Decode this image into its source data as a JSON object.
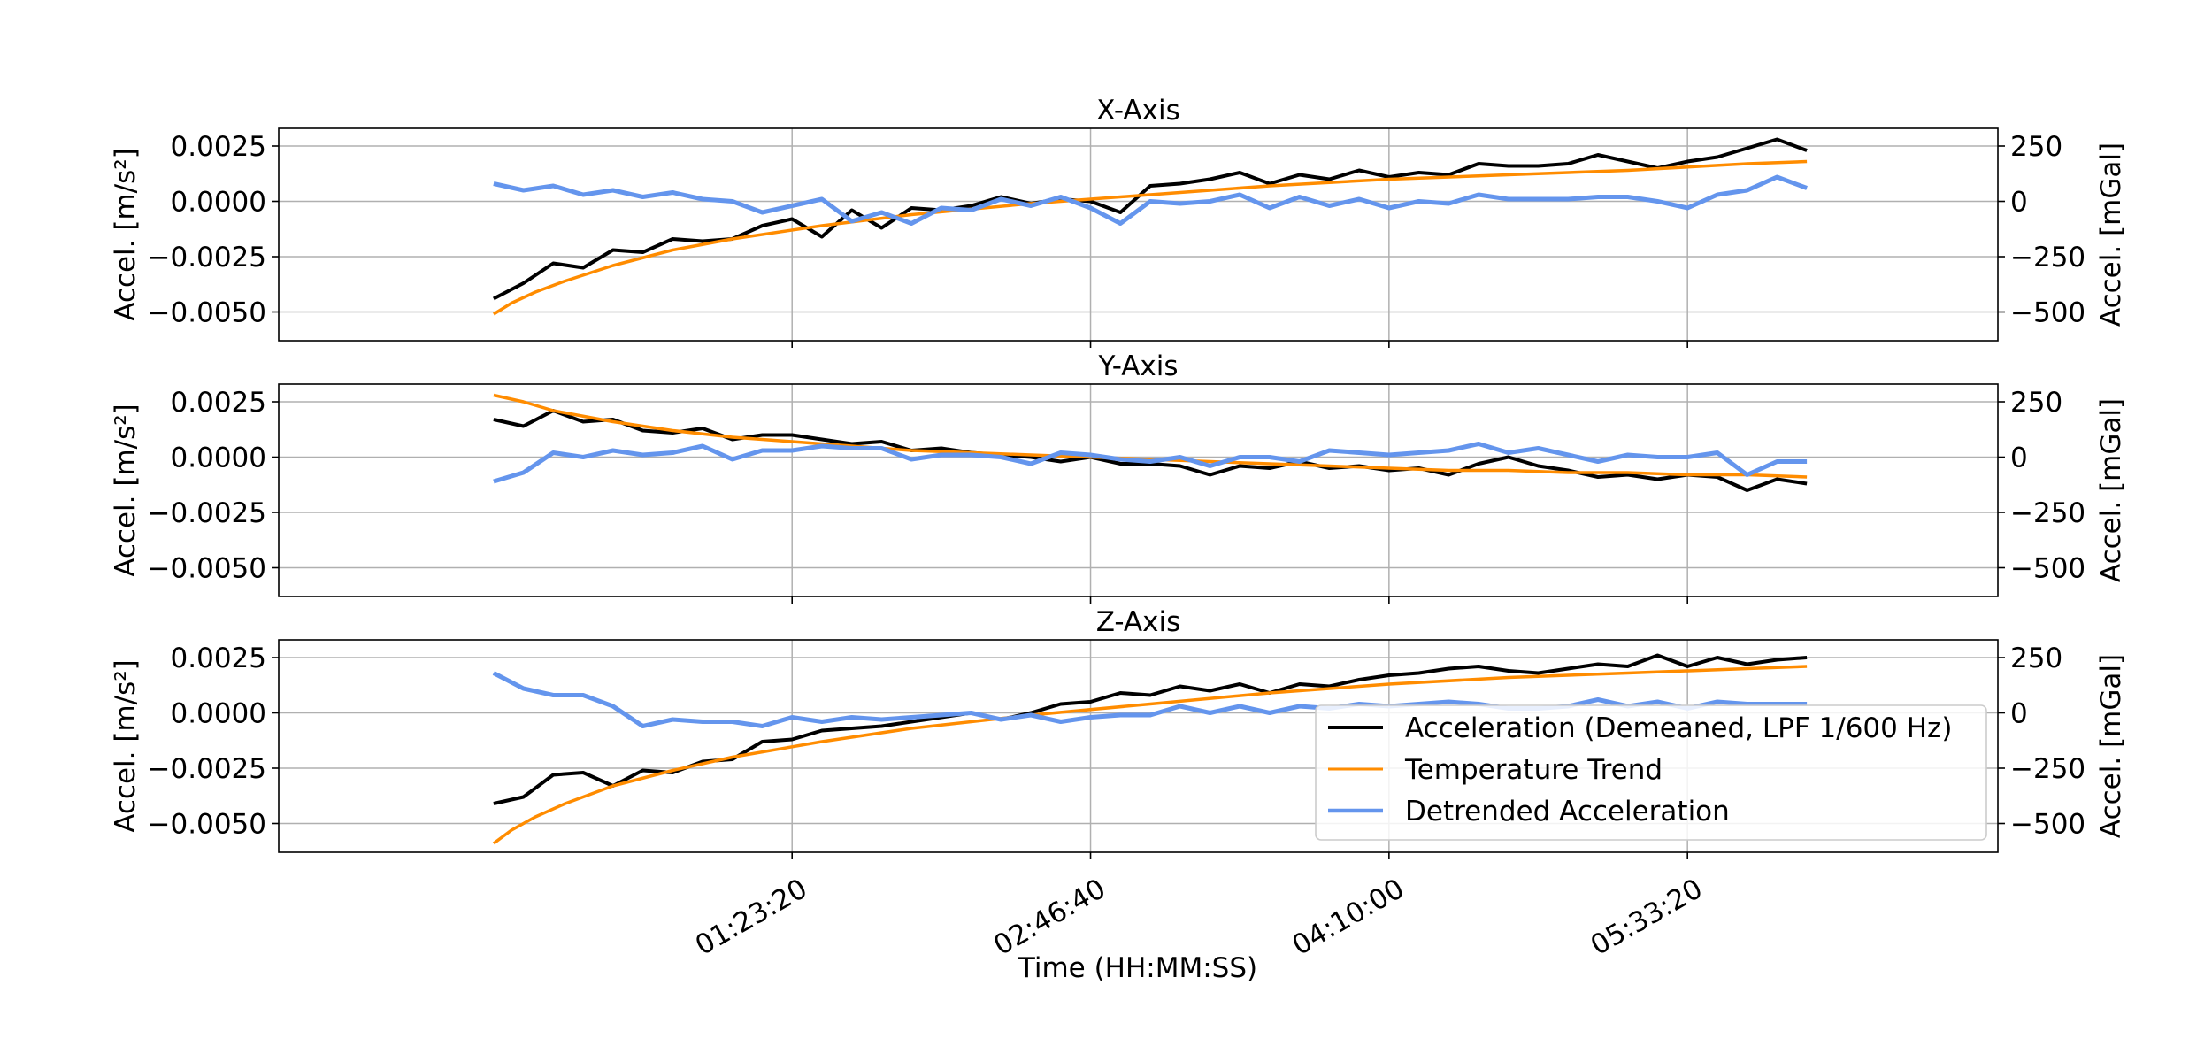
{
  "chart_data": {
    "type": "line",
    "xlabel": "Time (HH:MM:SS)",
    "x_range_seconds": [
      -3600,
      25200
    ],
    "x_ticks": [
      {
        "t": 5000,
        "label": "01:23:20"
      },
      {
        "t": 10000,
        "label": "02:46:40"
      },
      {
        "t": 15000,
        "label": "04:10:00"
      },
      {
        "t": 20000,
        "label": "05:33:20"
      }
    ],
    "ylabel_left": "Accel. [m/s²]",
    "ylabel_right": "Accel. [mGal]",
    "ylim_left": [
      -0.0063,
      0.0033
    ],
    "ylim_right": [
      -630,
      330
    ],
    "yticks_left": [
      {
        "v": 0.0025,
        "label": "0.0025"
      },
      {
        "v": 0.0,
        "label": "0.0000"
      },
      {
        "v": -0.0025,
        "label": "−0.0025"
      },
      {
        "v": -0.005,
        "label": "−0.0050"
      }
    ],
    "yticks_right": [
      {
        "v": 250,
        "label": "250"
      },
      {
        "v": 0,
        "label": "0"
      },
      {
        "v": -250,
        "label": "−250"
      },
      {
        "v": -500,
        "label": "−500"
      }
    ],
    "grid": true,
    "legend": {
      "placement": "lower-right (Z-Axis panel)",
      "entries": [
        {
          "label": "Acceleration (Demeaned, LPF 1/600 Hz)",
          "color": "#000000"
        },
        {
          "label": "Temperature Trend",
          "color": "#ff8c00"
        },
        {
          "label": "Detrended Acceleration",
          "color": "#6495ed"
        }
      ]
    },
    "colors": {
      "acceleration": "#000000",
      "temperature": "#ff8c00",
      "detrended": "#6495ed"
    },
    "panels": [
      {
        "title": "X-Axis",
        "series": {
          "acceleration": {
            "t": [
              0,
              500,
              1000,
              1500,
              2000,
              2500,
              3000,
              3500,
              4000,
              4500,
              5000,
              5500,
              6000,
              6500,
              7000,
              7500,
              8000,
              8500,
              9000,
              9500,
              10000,
              10500,
              11000,
              11500,
              12000,
              12500,
              13000,
              13500,
              14000,
              14500,
              15000,
              15500,
              16000,
              16500,
              17000,
              17500,
              18000,
              18500,
              19000,
              19500,
              20000,
              20500,
              21000,
              21500,
              22000
            ],
            "v": [
              -0.0044,
              -0.0037,
              -0.0028,
              -0.003,
              -0.0022,
              -0.0023,
              -0.0017,
              -0.0018,
              -0.0017,
              -0.0011,
              -0.0008,
              -0.0016,
              -0.0004,
              -0.0012,
              -0.0003,
              -0.0004,
              -0.0002,
              0.0002,
              -0.0001,
              0.0001,
              0.0,
              -0.0005,
              0.0007,
              0.0008,
              0.001,
              0.0013,
              0.0008,
              0.0012,
              0.001,
              0.0014,
              0.0011,
              0.0013,
              0.0012,
              0.0017,
              0.0016,
              0.0016,
              0.0017,
              0.0021,
              0.0018,
              0.0015,
              0.0018,
              0.002,
              0.0024,
              0.0028,
              0.0023
            ]
          },
          "temperature": {
            "t": [
              0,
              300,
              700,
              1200,
              2000,
              3000,
              4000,
              5500,
              7000,
              9000,
              11000,
              13000,
              15000,
              17000,
              19000,
              21000,
              22000
            ],
            "v": [
              -0.0051,
              -0.0046,
              -0.0041,
              -0.0036,
              -0.0029,
              -0.0022,
              -0.0017,
              -0.0011,
              -0.0006,
              -0.0001,
              0.0003,
              0.0007,
              0.001,
              0.0012,
              0.0014,
              0.0017,
              0.0018
            ]
          },
          "detrended": {
            "t": [
              0,
              500,
              1000,
              1500,
              2000,
              2500,
              3000,
              3500,
              4000,
              4500,
              5000,
              5500,
              6000,
              6500,
              7000,
              7500,
              8000,
              8500,
              9000,
              9500,
              10000,
              10500,
              11000,
              11500,
              12000,
              12500,
              13000,
              13500,
              14000,
              14500,
              15000,
              15500,
              16000,
              16500,
              17000,
              17500,
              18000,
              18500,
              19000,
              19500,
              20000,
              20500,
              21000,
              21500,
              22000
            ],
            "v": [
              0.0008,
              0.0005,
              0.0007,
              0.0003,
              0.0005,
              0.0002,
              0.0004,
              0.0001,
              0.0,
              -0.0005,
              -0.0002,
              0.0001,
              -0.0009,
              -0.0005,
              -0.001,
              -0.0003,
              -0.0004,
              0.0001,
              -0.0002,
              0.0002,
              -0.0003,
              -0.001,
              0.0,
              -0.0001,
              0.0,
              0.0003,
              -0.0003,
              0.0002,
              -0.0002,
              0.0001,
              -0.0003,
              0.0,
              -0.0001,
              0.0003,
              0.0001,
              0.0001,
              0.0001,
              0.0002,
              0.0002,
              0.0,
              -0.0003,
              0.0003,
              0.0005,
              0.0011,
              0.0006
            ]
          }
        }
      },
      {
        "title": "Y-Axis",
        "series": {
          "acceleration": {
            "t": [
              0,
              500,
              1000,
              1500,
              2000,
              2500,
              3000,
              3500,
              4000,
              4500,
              5000,
              5500,
              6000,
              6500,
              7000,
              7500,
              8000,
              8500,
              9000,
              9500,
              10000,
              10500,
              11000,
              11500,
              12000,
              12500,
              13000,
              13500,
              14000,
              14500,
              15000,
              15500,
              16000,
              16500,
              17000,
              17500,
              18000,
              18500,
              19000,
              19500,
              20000,
              20500,
              21000,
              21500,
              22000
            ],
            "v": [
              0.0017,
              0.0014,
              0.0021,
              0.0016,
              0.0017,
              0.0012,
              0.0011,
              0.0013,
              0.0008,
              0.001,
              0.001,
              0.0008,
              0.0006,
              0.0007,
              0.0003,
              0.0004,
              0.0002,
              0.0001,
              0.0,
              -0.0002,
              0.0,
              -0.0003,
              -0.0003,
              -0.0004,
              -0.0008,
              -0.0004,
              -0.0005,
              -0.0002,
              -0.0005,
              -0.0004,
              -0.0006,
              -0.0005,
              -0.0008,
              -0.0003,
              0.0,
              -0.0004,
              -0.0006,
              -0.0009,
              -0.0008,
              -0.001,
              -0.0008,
              -0.0009,
              -0.0015,
              -0.001,
              -0.0012
            ]
          },
          "temperature": {
            "t": [
              0,
              500,
              1000,
              2000,
              3000,
              4000,
              5000,
              6000,
              7000,
              8000,
              9000,
              10000,
              11000,
              12000,
              13000,
              14000,
              15000,
              16000,
              17000,
              18000,
              19000,
              20000,
              21000,
              22000
            ],
            "v": [
              0.0028,
              0.0025,
              0.0021,
              0.0016,
              0.0012,
              0.0009,
              0.0007,
              0.0005,
              0.0003,
              0.0002,
              0.0001,
              0.0,
              -0.0001,
              -0.0002,
              -0.0003,
              -0.0004,
              -0.0005,
              -0.0006,
              -0.0006,
              -0.0007,
              -0.0007,
              -0.0008,
              -0.0008,
              -0.0009
            ]
          },
          "detrended": {
            "t": [
              0,
              500,
              1000,
              1500,
              2000,
              2500,
              3000,
              3500,
              4000,
              4500,
              5000,
              5500,
              6000,
              6500,
              7000,
              7500,
              8000,
              8500,
              9000,
              9500,
              10000,
              10500,
              11000,
              11500,
              12000,
              12500,
              13000,
              13500,
              14000,
              14500,
              15000,
              15500,
              16000,
              16500,
              17000,
              17500,
              18000,
              18500,
              19000,
              19500,
              20000,
              20500,
              21000,
              21500,
              22000
            ],
            "v": [
              -0.0011,
              -0.0007,
              0.0002,
              0.0,
              0.0003,
              0.0001,
              0.0002,
              0.0005,
              -0.0001,
              0.0003,
              0.0003,
              0.0005,
              0.0004,
              0.0004,
              -0.0001,
              0.0001,
              0.0001,
              0.0,
              -0.0003,
              0.0002,
              0.0001,
              -0.0001,
              -0.0002,
              0.0,
              -0.0004,
              0.0,
              0.0,
              -0.0002,
              0.0003,
              0.0002,
              0.0001,
              0.0002,
              0.0003,
              0.0006,
              0.0002,
              0.0004,
              0.0001,
              -0.0002,
              0.0001,
              0.0,
              0.0,
              0.0002,
              -0.0008,
              -0.0002,
              -0.0002
            ]
          }
        }
      },
      {
        "title": "Z-Axis",
        "series": {
          "acceleration": {
            "t": [
              0,
              500,
              1000,
              1500,
              2000,
              2500,
              3000,
              3500,
              4000,
              4500,
              5000,
              5500,
              6000,
              6500,
              7000,
              7500,
              8000,
              8500,
              9000,
              9500,
              10000,
              10500,
              11000,
              11500,
              12000,
              12500,
              13000,
              13500,
              14000,
              14500,
              15000,
              15500,
              16000,
              16500,
              17000,
              17500,
              18000,
              18500,
              19000,
              19500,
              20000,
              20500,
              21000,
              21500,
              22000
            ],
            "v": [
              -0.0041,
              -0.0038,
              -0.0028,
              -0.0027,
              -0.0033,
              -0.0026,
              -0.0027,
              -0.0022,
              -0.0021,
              -0.0013,
              -0.0012,
              -0.0008,
              -0.0007,
              -0.0006,
              -0.0004,
              -0.0002,
              0.0,
              -0.0003,
              0.0,
              0.0004,
              0.0005,
              0.0009,
              0.0008,
              0.0012,
              0.001,
              0.0013,
              0.0009,
              0.0013,
              0.0012,
              0.0015,
              0.0017,
              0.0018,
              0.002,
              0.0021,
              0.0019,
              0.0018,
              0.002,
              0.0022,
              0.0021,
              0.0026,
              0.0021,
              0.0025,
              0.0022,
              0.0024,
              0.0025
            ]
          },
          "temperature": {
            "t": [
              0,
              300,
              700,
              1200,
              2000,
              3000,
              4000,
              5500,
              7000,
              9000,
              11000,
              13000,
              15000,
              17000,
              19000,
              21000,
              22000
            ],
            "v": [
              -0.0059,
              -0.0053,
              -0.0047,
              -0.0041,
              -0.0033,
              -0.0026,
              -0.002,
              -0.0013,
              -0.0007,
              -0.0001,
              0.0004,
              0.0009,
              0.0013,
              0.0016,
              0.0018,
              0.002,
              0.0021
            ]
          },
          "detrended": {
            "t": [
              0,
              500,
              1000,
              1500,
              2000,
              2500,
              3000,
              3500,
              4000,
              4500,
              5000,
              5500,
              6000,
              6500,
              7000,
              7500,
              8000,
              8500,
              9000,
              9500,
              10000,
              10500,
              11000,
              11500,
              12000,
              12500,
              13000,
              13500,
              14000,
              14500,
              15000,
              15500,
              16000,
              16500,
              17000,
              17500,
              18000,
              18500,
              19000,
              19500,
              20000,
              20500,
              21000,
              21500,
              22000
            ],
            "v": [
              0.0018,
              0.0011,
              0.0008,
              0.0008,
              0.0003,
              -0.0006,
              -0.0003,
              -0.0004,
              -0.0004,
              -0.0006,
              -0.0002,
              -0.0004,
              -0.0002,
              -0.0003,
              -0.0002,
              -0.0001,
              0.0,
              -0.0003,
              -0.0001,
              -0.0004,
              -0.0002,
              -0.0001,
              -0.0001,
              0.0003,
              0.0,
              0.0003,
              0.0,
              0.0003,
              0.0002,
              0.0004,
              0.0003,
              0.0004,
              0.0005,
              0.0004,
              0.0002,
              0.0002,
              0.0003,
              0.0006,
              0.0003,
              0.0005,
              0.0002,
              0.0005,
              0.0004,
              0.0004,
              0.0004
            ]
          }
        }
      }
    ]
  }
}
